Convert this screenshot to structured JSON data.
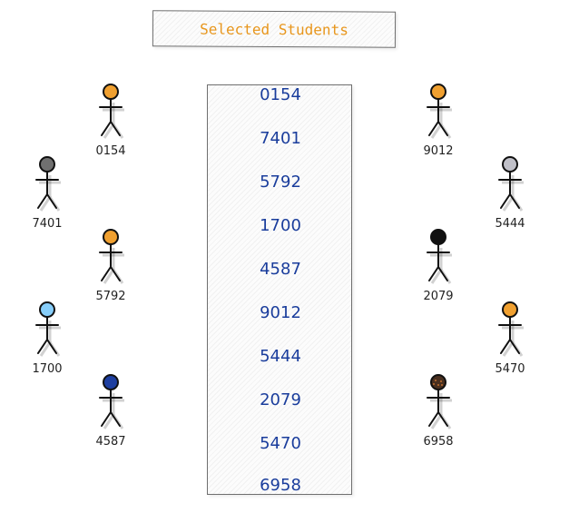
{
  "title": "Selected Students",
  "list": [
    "0154",
    "7401",
    "5792",
    "1700",
    "4587",
    "9012",
    "5444",
    "2079",
    "5470",
    "6958"
  ],
  "actors": [
    {
      "label": "0154",
      "color": "#f0a030",
      "icon": "person-icon"
    },
    {
      "label": "7401",
      "color": "#707070",
      "icon": "person-icon"
    },
    {
      "label": "5792",
      "color": "#f0a030",
      "icon": "person-icon"
    },
    {
      "label": "1700",
      "color": "#87cefa",
      "icon": "person-icon"
    },
    {
      "label": "4587",
      "color": "#1e3fa0",
      "icon": "person-icon"
    },
    {
      "label": "9012",
      "color": "#f0a030",
      "icon": "person-icon"
    },
    {
      "label": "5444",
      "color": "#c0c0c8",
      "icon": "person-icon"
    },
    {
      "label": "2079",
      "color": "#111111",
      "icon": "person-icon"
    },
    {
      "label": "5470",
      "color": "#f0a030",
      "icon": "person-icon"
    },
    {
      "label": "6958",
      "color": "#4a3020",
      "icon": "person-icon"
    }
  ]
}
